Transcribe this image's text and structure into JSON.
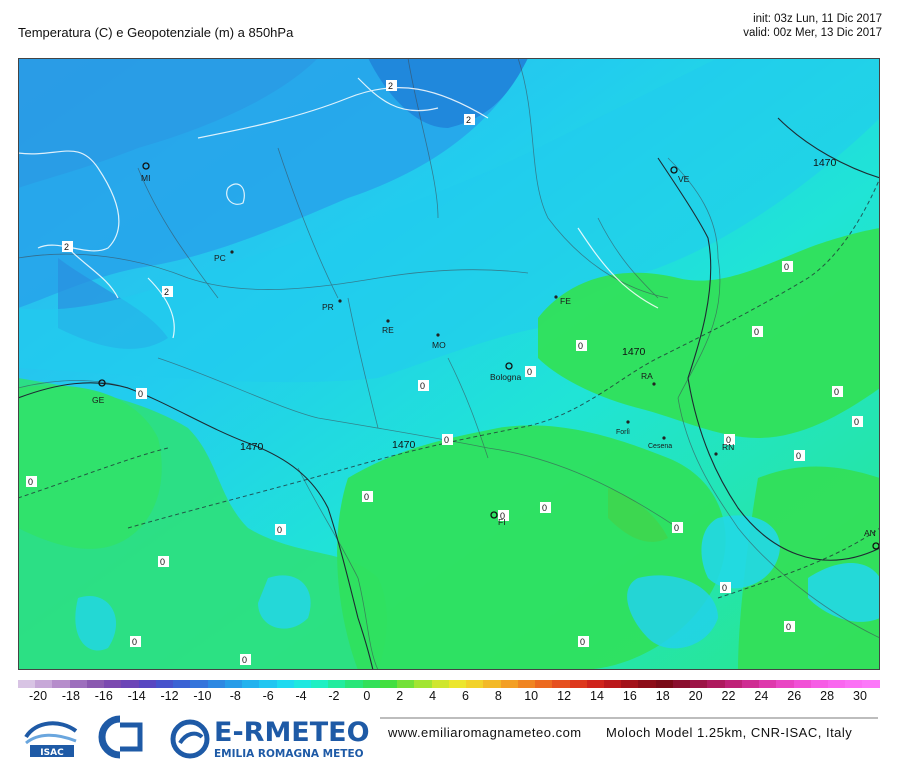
{
  "header": {
    "title": "Temperatura (C) e Geopotenziale (m) a 850hPa",
    "init": "init: 03z Lun, 11 Dic 2017",
    "valid": "valid: 00z Mer, 13 Dic 2017"
  },
  "map": {
    "cities": [
      {
        "label": "MI"
      },
      {
        "label": "PC"
      },
      {
        "label": "GE"
      },
      {
        "label": "PR"
      },
      {
        "label": "RE"
      },
      {
        "label": "MO"
      },
      {
        "label": "Bologna"
      },
      {
        "label": "FE"
      },
      {
        "label": "VE"
      },
      {
        "label": "RA"
      },
      {
        "label": "Forlì"
      },
      {
        "label": "Cesena"
      },
      {
        "label": "RN"
      },
      {
        "label": "FI"
      },
      {
        "label": "AN"
      }
    ],
    "geopotential_labels": [
      "1470",
      "1470",
      "1470",
      "1470"
    ],
    "isotherm_labels": [
      "2",
      "2",
      "2",
      "2",
      "0",
      "0",
      "0",
      "0",
      "0",
      "0",
      "0",
      "0",
      "0",
      "0",
      "0",
      "0",
      "0",
      "0",
      "0",
      "0",
      "0",
      "0",
      "0",
      "0",
      "0",
      "0",
      "0"
    ]
  },
  "colorbar": {
    "ticks": [
      "-20",
      "-18",
      "-16",
      "-14",
      "-12",
      "-10",
      "-8",
      "-6",
      "-4",
      "-2",
      "0",
      "2",
      "4",
      "6",
      "8",
      "10",
      "12",
      "14",
      "16",
      "18",
      "20",
      "22",
      "24",
      "26",
      "28",
      "30"
    ],
    "colors": [
      "#d8c4e4",
      "#c7a8d8",
      "#b68dcb",
      "#9d6fbd",
      "#8a59b0",
      "#7b49b0",
      "#6c45b7",
      "#5846c1",
      "#4652cc",
      "#3b62d4",
      "#3474db",
      "#2d88e2",
      "#279ce8",
      "#23b2ee",
      "#22c6f1",
      "#20daf0",
      "#1fe8e0",
      "#1ff0c3",
      "#22ec9e",
      "#28e679",
      "#32e05a",
      "#43df40",
      "#73e138",
      "#a2e532",
      "#cfe62f",
      "#ece62d",
      "#f2d22a",
      "#f3b927",
      "#f39f24",
      "#f08522",
      "#ec6a20",
      "#e6501f",
      "#dd381d",
      "#cf241c",
      "#bb181b",
      "#a3121a",
      "#8c0d18",
      "#7a0a17",
      "#8a0f2e",
      "#9c1446",
      "#ae1a5e",
      "#bf2278",
      "#cf2c92",
      "#de38ac",
      "#e945c3",
      "#f151d6",
      "#f65de5",
      "#f967ef",
      "#fb70f5",
      "#fc78f9"
    ]
  },
  "footer": {
    "website": "www.emiliaromagnameteo.com",
    "model": "Moloch Model 1.25km, CNR-ISAC, Italy",
    "logo_isac": "ISAC",
    "logo_er_main": "E-RMETEO",
    "logo_er_sub": "EMILIA ROMAGNA METEO"
  }
}
